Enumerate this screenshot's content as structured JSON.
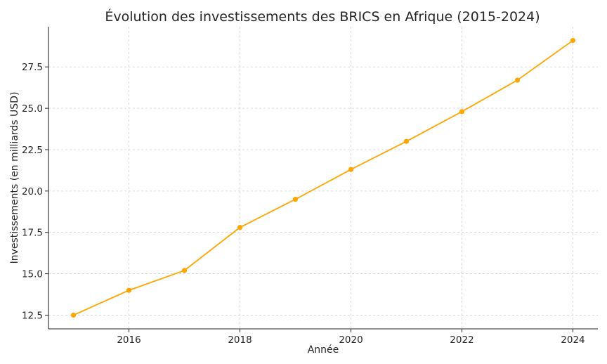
{
  "chart_data": {
    "type": "line",
    "title": "Évolution des investissements des BRICS en Afrique (2015-2024)",
    "xlabel": "Année",
    "ylabel": "Investissements (en milliards USD)",
    "x": [
      2015,
      2016,
      2017,
      2018,
      2019,
      2020,
      2021,
      2022,
      2023,
      2024
    ],
    "series": [
      {
        "values": [
          12.5,
          14.0,
          15.2,
          17.8,
          19.5,
          21.3,
          23.0,
          24.8,
          26.7,
          29.1
        ]
      }
    ],
    "x_ticks": [
      "2016",
      "2018",
      "2020",
      "2022",
      "2024"
    ],
    "y_ticks": [
      "12.5",
      "15.0",
      "17.5",
      "20.0",
      "22.5",
      "25.0",
      "27.5"
    ],
    "xlim": [
      2014.55,
      2024.45
    ],
    "ylim": [
      11.67,
      29.93
    ],
    "grid": true,
    "line_color": "#FFA500",
    "marker": "circle"
  }
}
